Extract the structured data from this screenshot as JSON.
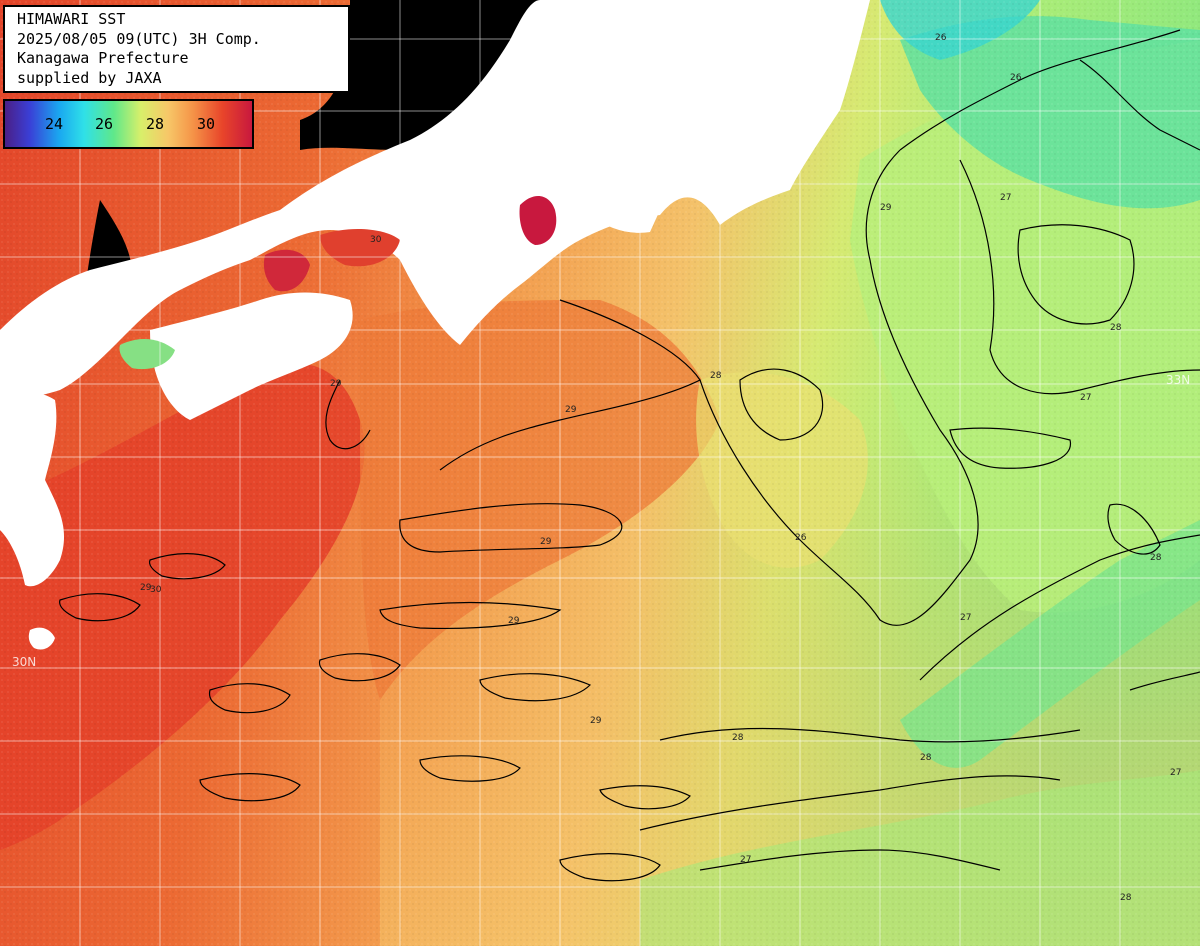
{
  "title_box": {
    "line1": "HIMAWARI SST",
    "line2": "2025/08/05 09(UTC) 3H Comp.",
    "line3": "Kanagawa Prefecture",
    "line4": "supplied by JAXA"
  },
  "legend": {
    "ticks": [
      "24",
      "26",
      "28",
      "30"
    ]
  },
  "map": {
    "lat_labels": [
      "33N",
      "30N"
    ],
    "contour_labels": [
      "29",
      "28",
      "27",
      "26",
      "30"
    ],
    "colors": {
      "land": "#ffffff",
      "no_data": "#000000",
      "sst_30": "#e8452a",
      "sst_29": "#f28a3f",
      "sst_28": "#f4c56a",
      "sst_27": "#c8ef74",
      "sst_26": "#6fe38a",
      "sst_25": "#35d9c0"
    }
  }
}
